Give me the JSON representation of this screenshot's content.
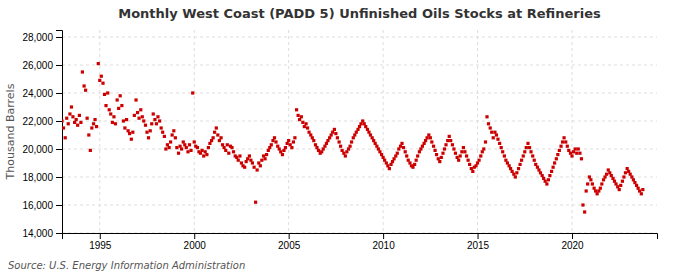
{
  "chart_data": {
    "type": "scatter",
    "title": "Monthly West Coast (PADD 5) Unfinished Oils Stocks at Refineries",
    "ylabel": "Thousand Barrels",
    "annotations": [
      "Source: U.S. Energy Information Administration"
    ],
    "color": "#cc0000",
    "marker": "square",
    "grid": true,
    "xlim": [
      1993.0,
      2024.5
    ],
    "ylim": [
      14000,
      28500
    ],
    "xticks": [
      1995,
      2000,
      2005,
      2010,
      2015,
      2020
    ],
    "yticks": [
      {
        "value": 14000,
        "label": "14,000"
      },
      {
        "value": 16000,
        "label": "16,000"
      },
      {
        "value": 18000,
        "label": "18,000"
      },
      {
        "value": 20000,
        "label": "20,000"
      },
      {
        "value": 22000,
        "label": "22,000"
      },
      {
        "value": 24000,
        "label": "24,000"
      },
      {
        "value": 26000,
        "label": "26,000"
      },
      {
        "value": 28000,
        "label": "28,000"
      }
    ],
    "x": [
      1993.0,
      1993.08,
      1993.17,
      1993.25,
      1993.33,
      1993.42,
      1993.5,
      1993.58,
      1993.67,
      1993.75,
      1993.83,
      1993.92,
      1994.0,
      1994.08,
      1994.17,
      1994.25,
      1994.33,
      1994.42,
      1994.5,
      1994.58,
      1994.67,
      1994.75,
      1994.83,
      1994.92,
      1995.0,
      1995.08,
      1995.17,
      1995.25,
      1995.33,
      1995.42,
      1995.5,
      1995.58,
      1995.67,
      1995.75,
      1995.83,
      1995.92,
      1996.0,
      1996.08,
      1996.17,
      1996.25,
      1996.33,
      1996.42,
      1996.5,
      1996.58,
      1996.67,
      1996.75,
      1996.83,
      1996.92,
      1997.0,
      1997.08,
      1997.17,
      1997.25,
      1997.33,
      1997.42,
      1997.5,
      1997.58,
      1997.67,
      1997.75,
      1997.83,
      1997.92,
      1998.0,
      1998.08,
      1998.17,
      1998.25,
      1998.33,
      1998.42,
      1998.5,
      1998.58,
      1998.67,
      1998.75,
      1998.83,
      1998.92,
      1999.0,
      1999.08,
      1999.17,
      1999.25,
      1999.33,
      1999.42,
      1999.5,
      1999.58,
      1999.67,
      1999.75,
      1999.83,
      1999.92,
      2000.0,
      2000.08,
      2000.17,
      2000.25,
      2000.33,
      2000.42,
      2000.5,
      2000.58,
      2000.67,
      2000.75,
      2000.83,
      2000.92,
      2001.0,
      2001.08,
      2001.17,
      2001.25,
      2001.33,
      2001.42,
      2001.5,
      2001.58,
      2001.67,
      2001.75,
      2001.83,
      2001.92,
      2002.0,
      2002.08,
      2002.17,
      2002.25,
      2002.33,
      2002.42,
      2002.5,
      2002.58,
      2002.67,
      2002.75,
      2002.83,
      2002.92,
      2003.0,
      2003.08,
      2003.17,
      2003.25,
      2003.33,
      2003.42,
      2003.5,
      2003.58,
      2003.67,
      2003.75,
      2003.83,
      2003.92,
      2004.0,
      2004.08,
      2004.17,
      2004.25,
      2004.33,
      2004.42,
      2004.5,
      2004.58,
      2004.67,
      2004.75,
      2004.83,
      2004.92,
      2005.0,
      2005.08,
      2005.17,
      2005.25,
      2005.33,
      2005.42,
      2005.5,
      2005.58,
      2005.67,
      2005.75,
      2005.83,
      2005.92,
      2006.0,
      2006.08,
      2006.17,
      2006.25,
      2006.33,
      2006.42,
      2006.5,
      2006.58,
      2006.67,
      2006.75,
      2006.83,
      2006.92,
      2007.0,
      2007.08,
      2007.17,
      2007.25,
      2007.33,
      2007.42,
      2007.5,
      2007.58,
      2007.67,
      2007.75,
      2007.83,
      2007.92,
      2008.0,
      2008.08,
      2008.17,
      2008.25,
      2008.33,
      2008.42,
      2008.5,
      2008.58,
      2008.67,
      2008.75,
      2008.83,
      2008.92,
      2009.0,
      2009.08,
      2009.17,
      2009.25,
      2009.33,
      2009.42,
      2009.5,
      2009.58,
      2009.67,
      2009.75,
      2009.83,
      2009.92,
      2010.0,
      2010.08,
      2010.17,
      2010.25,
      2010.33,
      2010.42,
      2010.5,
      2010.58,
      2010.67,
      2010.75,
      2010.83,
      2010.92,
      2011.0,
      2011.08,
      2011.17,
      2011.25,
      2011.33,
      2011.42,
      2011.5,
      2011.58,
      2011.67,
      2011.75,
      2011.83,
      2011.92,
      2012.0,
      2012.08,
      2012.17,
      2012.25,
      2012.33,
      2012.42,
      2012.5,
      2012.58,
      2012.67,
      2012.75,
      2012.83,
      2012.92,
      2013.0,
      2013.08,
      2013.17,
      2013.25,
      2013.33,
      2013.42,
      2013.5,
      2013.58,
      2013.67,
      2013.75,
      2013.83,
      2013.92,
      2014.0,
      2014.08,
      2014.17,
      2014.25,
      2014.33,
      2014.42,
      2014.5,
      2014.58,
      2014.67,
      2014.75,
      2014.83,
      2014.92,
      2015.0,
      2015.08,
      2015.17,
      2015.25,
      2015.33,
      2015.42,
      2015.5,
      2015.58,
      2015.67,
      2015.75,
      2015.83,
      2015.92,
      2016.0,
      2016.08,
      2016.17,
      2016.25,
      2016.33,
      2016.42,
      2016.5,
      2016.58,
      2016.67,
      2016.75,
      2016.83,
      2016.92,
      2017.0,
      2017.08,
      2017.17,
      2017.25,
      2017.33,
      2017.42,
      2017.5,
      2017.58,
      2017.67,
      2017.75,
      2017.83,
      2017.92,
      2018.0,
      2018.08,
      2018.17,
      2018.25,
      2018.33,
      2018.42,
      2018.5,
      2018.58,
      2018.67,
      2018.75,
      2018.83,
      2018.92,
      2019.0,
      2019.08,
      2019.17,
      2019.25,
      2019.33,
      2019.42,
      2019.5,
      2019.58,
      2019.67,
      2019.75,
      2019.83,
      2019.92,
      2020.0,
      2020.08,
      2020.17,
      2020.25,
      2020.33,
      2020.42,
      2020.5,
      2020.58,
      2020.67,
      2020.75,
      2020.83,
      2020.92,
      2021.0,
      2021.08,
      2021.17,
      2021.25,
      2021.33,
      2021.42,
      2021.5,
      2021.58,
      2021.67,
      2021.75,
      2021.83,
      2021.92,
      2022.0,
      2022.08,
      2022.17,
      2022.25,
      2022.33,
      2022.42,
      2022.5,
      2022.58,
      2022.67,
      2022.75,
      2022.83,
      2022.92,
      2023.0,
      2023.08,
      2023.17,
      2023.25,
      2023.33,
      2023.42,
      2023.5,
      2023.58,
      2023.67,
      2023.75
    ],
    "values": [
      22000,
      21500,
      20800,
      22200,
      21800,
      22500,
      23000,
      22300,
      21900,
      22100,
      21700,
      22400,
      21900,
      25500,
      24500,
      24200,
      22200,
      21000,
      19900,
      21500,
      21800,
      22100,
      21600,
      26100,
      24900,
      25200,
      24700,
      23900,
      23100,
      24000,
      22800,
      22500,
      21900,
      22300,
      21800,
      23500,
      22900,
      23800,
      23100,
      22000,
      21500,
      22100,
      21300,
      21100,
      20700,
      21200,
      22400,
      23500,
      22600,
      22200,
      22800,
      22300,
      22000,
      21700,
      21200,
      20800,
      21300,
      21800,
      22500,
      22100,
      21800,
      22300,
      22000,
      21500,
      21200,
      20900,
      20000,
      20300,
      20100,
      20500,
      21000,
      21300,
      20800,
      20100,
      19700,
      20200,
      20000,
      20500,
      20300,
      20100,
      19800,
      20300,
      19900,
      24000,
      20500,
      20200,
      20100,
      19800,
      19700,
      19900,
      19500,
      19800,
      19600,
      20100,
      20400,
      20600,
      20800,
      21200,
      21500,
      21000,
      20600,
      20800,
      20300,
      20100,
      19900,
      20300,
      19700,
      20200,
      20100,
      19800,
      19500,
      19400,
      19200,
      19500,
      19000,
      18800,
      18700,
      19100,
      19300,
      19500,
      19200,
      19000,
      18700,
      16200,
      18500,
      19000,
      18800,
      19200,
      19500,
      19300,
      19600,
      19900,
      20100,
      20300,
      20600,
      20800,
      20500,
      20200,
      20000,
      19800,
      19600,
      19900,
      20100,
      20400,
      20600,
      20300,
      20100,
      20500,
      20800,
      22800,
      22400,
      22100,
      22300,
      21900,
      21600,
      21800,
      21500,
      21200,
      21000,
      20800,
      20600,
      20300,
      20100,
      19900,
      19700,
      19800,
      20000,
      20200,
      20400,
      20600,
      20800,
      21000,
      21200,
      21400,
      21100,
      20800,
      20500,
      20200,
      19900,
      19700,
      19500,
      19800,
      20000,
      20200,
      20500,
      20800,
      21000,
      21200,
      21400,
      21600,
      21800,
      22000,
      21800,
      21600,
      21400,
      21200,
      21000,
      20800,
      20600,
      20400,
      20200,
      20000,
      19800,
      19600,
      19400,
      19200,
      19000,
      18800,
      18600,
      18900,
      19100,
      19300,
      19500,
      19700,
      20000,
      20200,
      20400,
      20100,
      19800,
      19500,
      19200,
      19000,
      18800,
      18700,
      18900,
      19200,
      19500,
      19800,
      20000,
      20200,
      20400,
      20600,
      20800,
      21000,
      20800,
      20500,
      20200,
      19900,
      19600,
      19300,
      19100,
      19400,
      19700,
      20000,
      20300,
      20600,
      20900,
      20600,
      20300,
      20000,
      19700,
      19400,
      19200,
      19500,
      19800,
      20100,
      19800,
      19500,
      19200,
      18900,
      18600,
      18400,
      18700,
      18800,
      19000,
      19200,
      19500,
      19800,
      20000,
      20500,
      22300,
      21800,
      21500,
      21200,
      20800,
      21200,
      21000,
      20700,
      20400,
      20100,
      19800,
      19500,
      19200,
      19000,
      18800,
      18600,
      18400,
      18200,
      18000,
      18300,
      18600,
      18900,
      19200,
      19500,
      19800,
      20100,
      20400,
      20100,
      19800,
      19500,
      19200,
      18900,
      18700,
      18500,
      18300,
      18100,
      17900,
      17700,
      17500,
      17800,
      18100,
      18400,
      18700,
      19000,
      19300,
      19600,
      19900,
      20200,
      20500,
      20800,
      20500,
      20200,
      19900,
      19700,
      19500,
      19800,
      20000,
      19700,
      20000,
      19700,
      19300,
      16000,
      15500,
      17000,
      17500,
      18000,
      17800,
      17500,
      17200,
      17000,
      16800,
      17000,
      17200,
      17500,
      17800,
      18000,
      18200,
      18500,
      18300,
      18100,
      17900,
      17700,
      17500,
      17300,
      17100,
      17400,
      17700,
      18000,
      18300,
      18600,
      18400,
      18200,
      18000,
      17800,
      17600,
      17400,
      17200,
      17000,
      16800,
      17100
    ]
  }
}
